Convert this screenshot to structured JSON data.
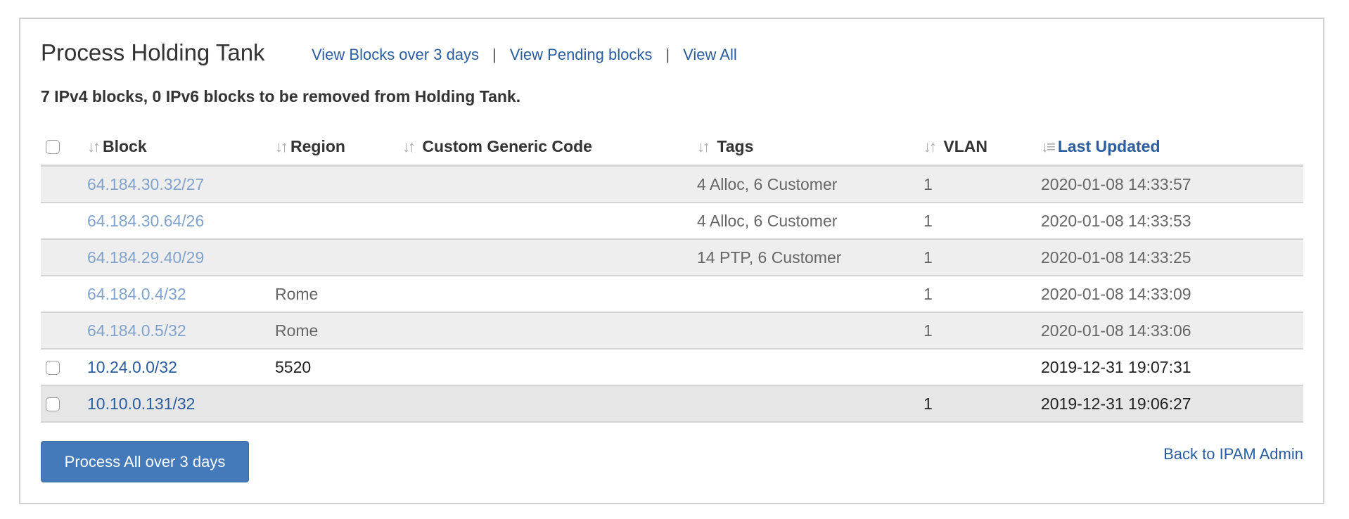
{
  "header": {
    "title": "Process Holding Tank",
    "links": [
      "View Blocks over 3 days",
      "View Pending blocks",
      "View All"
    ],
    "separator": "|"
  },
  "summary": "7 IPv4 blocks, 0 IPv6 blocks to be removed from Holding Tank.",
  "table": {
    "columns": [
      "Block",
      "Region",
      "Custom Generic Code",
      "Tags",
      "VLAN",
      "Last Updated"
    ],
    "sorted_column": "Last Updated",
    "rows": [
      {
        "block": "64.184.30.32/27",
        "region": "",
        "code": "",
        "tags": "4 Alloc, 6 Customer",
        "vlan": "1",
        "updated": "2020-01-08 14:33:57",
        "checkbox": false
      },
      {
        "block": "64.184.30.64/26",
        "region": "",
        "code": "",
        "tags": "4 Alloc, 6 Customer",
        "vlan": "1",
        "updated": "2020-01-08 14:33:53",
        "checkbox": false
      },
      {
        "block": "64.184.29.40/29",
        "region": "",
        "code": "",
        "tags": "14 PTP, 6 Customer",
        "vlan": "1",
        "updated": "2020-01-08 14:33:25",
        "checkbox": false
      },
      {
        "block": "64.184.0.4/32",
        "region": "Rome",
        "code": "",
        "tags": "",
        "vlan": "1",
        "updated": "2020-01-08 14:33:09",
        "checkbox": false
      },
      {
        "block": "64.184.0.5/32",
        "region": "Rome",
        "code": "",
        "tags": "",
        "vlan": "1",
        "updated": "2020-01-08 14:33:06",
        "checkbox": false
      },
      {
        "block": "10.24.0.0/32",
        "region": "5520",
        "code": "",
        "tags": "",
        "vlan": "",
        "updated": "2019-12-31 19:07:31",
        "checkbox": true
      },
      {
        "block": "10.10.0.131/32",
        "region": "",
        "code": "",
        "tags": "",
        "vlan": "1",
        "updated": "2019-12-31 19:06:27",
        "checkbox": true
      }
    ]
  },
  "footer": {
    "process_button": "Process All over 3 days",
    "back_link": "Back to IPAM Admin"
  },
  "colors": {
    "link": "#2a5d9f",
    "button": "#447ab9",
    "stripe": "#eeeeee"
  }
}
